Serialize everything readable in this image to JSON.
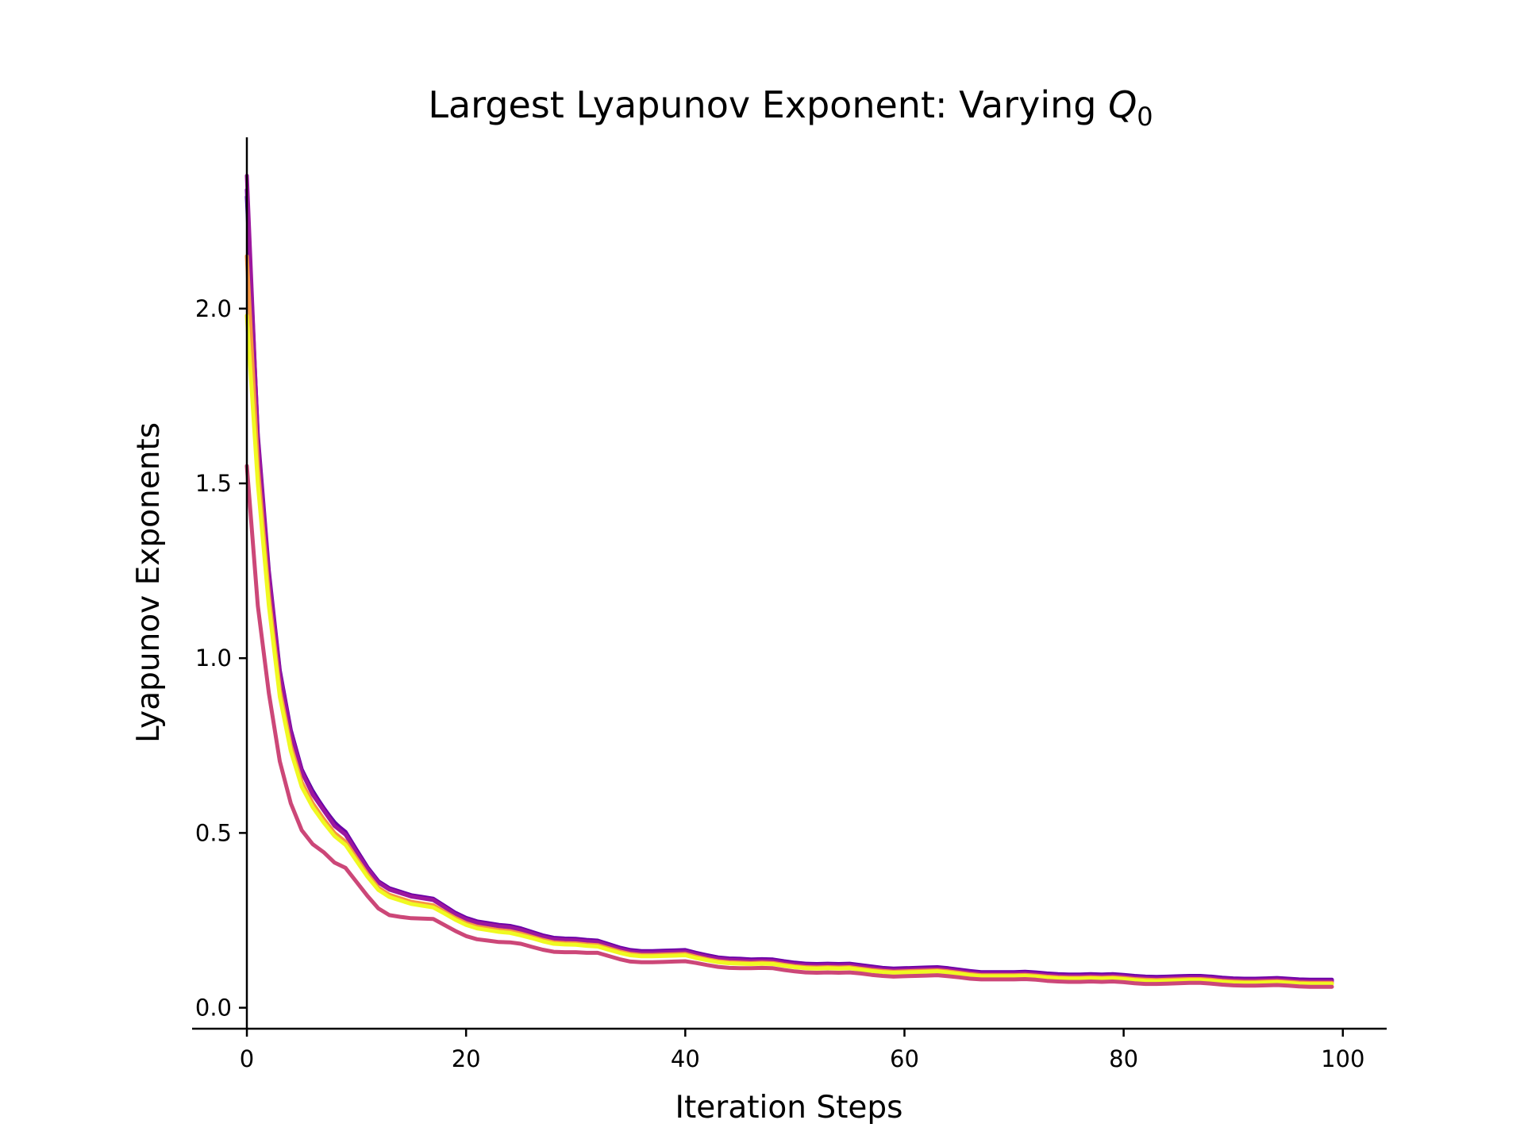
{
  "chart_data": {
    "type": "line",
    "title": "Largest Lyapunov Exponent: Varying ",
    "title_math_base": "Q",
    "title_math_sub": "0",
    "xlabel": "Iteration Steps",
    "ylabel": "Lyapunov Exponents",
    "xlim": [
      -5,
      104
    ],
    "ylim": [
      -0.06,
      2.49
    ],
    "xticks": [
      0,
      20,
      40,
      60,
      80,
      100
    ],
    "xtick_labels": [
      "0",
      "20",
      "40",
      "60",
      "80",
      "100"
    ],
    "yticks": [
      0.0,
      0.5,
      1.0,
      1.5,
      2.0
    ],
    "ytick_labels": [
      "0.0",
      "0.5",
      "1.0",
      "1.5",
      "2.0"
    ],
    "grid": false,
    "legend": false,
    "x": [
      0,
      1,
      2,
      3,
      4,
      5,
      6,
      7,
      8,
      9,
      10,
      11,
      12,
      13,
      14,
      15,
      16,
      17,
      18,
      19,
      20,
      21,
      22,
      23,
      24,
      25,
      26,
      27,
      28,
      29,
      30,
      31,
      32,
      33,
      34,
      35,
      36,
      37,
      38,
      39,
      40,
      41,
      42,
      43,
      44,
      45,
      46,
      47,
      48,
      49,
      50,
      51,
      52,
      53,
      54,
      55,
      56,
      57,
      58,
      59,
      60,
      61,
      62,
      63,
      64,
      65,
      66,
      67,
      68,
      69,
      70,
      71,
      72,
      73,
      74,
      75,
      76,
      77,
      78,
      79,
      80,
      81,
      82,
      83,
      84,
      85,
      86,
      87,
      88,
      89,
      90,
      91,
      92,
      93,
      94,
      95,
      96,
      97,
      98,
      99
    ],
    "series": [
      {
        "color": "#0d0887",
        "values": [
          2.32,
          1.62,
          1.24,
          0.96,
          0.79,
          0.68,
          0.62,
          0.57,
          0.53,
          0.5,
          0.45,
          0.4,
          0.36,
          0.34,
          0.33,
          0.32,
          0.315,
          0.31,
          0.29,
          0.27,
          0.255,
          0.245,
          0.24,
          0.235,
          0.232,
          0.225,
          0.215,
          0.205,
          0.198,
          0.196,
          0.195,
          0.192,
          0.19,
          0.18,
          0.17,
          0.163,
          0.16,
          0.16,
          0.161,
          0.162,
          0.163,
          0.155,
          0.148,
          0.142,
          0.139,
          0.138,
          0.136,
          0.137,
          0.136,
          0.131,
          0.127,
          0.124,
          0.123,
          0.124,
          0.123,
          0.124,
          0.12,
          0.116,
          0.112,
          0.11,
          0.111,
          0.112,
          0.113,
          0.114,
          0.111,
          0.107,
          0.103,
          0.1,
          0.1,
          0.1,
          0.1,
          0.101,
          0.099,
          0.096,
          0.094,
          0.093,
          0.093,
          0.094,
          0.093,
          0.094,
          0.092,
          0.089,
          0.087,
          0.086,
          0.087,
          0.088,
          0.089,
          0.089,
          0.087,
          0.084,
          0.082,
          0.081,
          0.081,
          0.082,
          0.083,
          0.081,
          0.079,
          0.078,
          0.078,
          0.078
        ]
      },
      {
        "color": "#6a00a8",
        "values": [
          2.34,
          1.64,
          1.25,
          0.965,
          0.795,
          0.682,
          0.618,
          0.572,
          0.528,
          0.503,
          0.452,
          0.402,
          0.362,
          0.342,
          0.332,
          0.322,
          0.317,
          0.312,
          0.292,
          0.272,
          0.257,
          0.247,
          0.242,
          0.237,
          0.234,
          0.227,
          0.217,
          0.207,
          0.2,
          0.198,
          0.197,
          0.194,
          0.192,
          0.182,
          0.172,
          0.165,
          0.162,
          0.162,
          0.163,
          0.164,
          0.165,
          0.157,
          0.15,
          0.144,
          0.141,
          0.14,
          0.138,
          0.139,
          0.138,
          0.133,
          0.129,
          0.126,
          0.125,
          0.126,
          0.125,
          0.126,
          0.122,
          0.118,
          0.114,
          0.112,
          0.113,
          0.114,
          0.115,
          0.116,
          0.113,
          0.109,
          0.105,
          0.102,
          0.102,
          0.102,
          0.102,
          0.103,
          0.101,
          0.098,
          0.096,
          0.095,
          0.095,
          0.096,
          0.095,
          0.096,
          0.094,
          0.091,
          0.089,
          0.088,
          0.089,
          0.09,
          0.091,
          0.091,
          0.089,
          0.086,
          0.084,
          0.083,
          0.083,
          0.084,
          0.085,
          0.083,
          0.081,
          0.08,
          0.08,
          0.08
        ]
      },
      {
        "color": "#9c179e",
        "values": [
          2.38,
          1.63,
          1.24,
          0.955,
          0.785,
          0.675,
          0.61,
          0.565,
          0.52,
          0.495,
          0.445,
          0.398,
          0.358,
          0.338,
          0.328,
          0.318,
          0.313,
          0.308,
          0.288,
          0.268,
          0.253,
          0.243,
          0.238,
          0.233,
          0.23,
          0.223,
          0.213,
          0.203,
          0.196,
          0.194,
          0.193,
          0.19,
          0.188,
          0.178,
          0.168,
          0.161,
          0.158,
          0.158,
          0.159,
          0.16,
          0.161,
          0.153,
          0.146,
          0.14,
          0.137,
          0.136,
          0.134,
          0.135,
          0.134,
          0.129,
          0.125,
          0.122,
          0.121,
          0.122,
          0.121,
          0.122,
          0.118,
          0.114,
          0.11,
          0.108,
          0.109,
          0.11,
          0.111,
          0.112,
          0.109,
          0.105,
          0.101,
          0.098,
          0.098,
          0.098,
          0.098,
          0.099,
          0.097,
          0.094,
          0.092,
          0.091,
          0.091,
          0.092,
          0.091,
          0.092,
          0.09,
          0.087,
          0.085,
          0.084,
          0.085,
          0.086,
          0.087,
          0.087,
          0.085,
          0.082,
          0.08,
          0.079,
          0.079,
          0.08,
          0.081,
          0.079,
          0.077,
          0.076,
          0.076,
          0.076
        ]
      },
      {
        "color": "#f89540",
        "values": [
          2.15,
          1.55,
          1.18,
          0.91,
          0.75,
          0.645,
          0.585,
          0.54,
          0.5,
          0.475,
          0.428,
          0.382,
          0.343,
          0.323,
          0.313,
          0.303,
          0.298,
          0.293,
          0.275,
          0.257,
          0.242,
          0.232,
          0.227,
          0.222,
          0.219,
          0.212,
          0.203,
          0.194,
          0.187,
          0.185,
          0.184,
          0.181,
          0.179,
          0.17,
          0.161,
          0.154,
          0.151,
          0.151,
          0.152,
          0.153,
          0.154,
          0.146,
          0.139,
          0.133,
          0.13,
          0.129,
          0.128,
          0.129,
          0.128,
          0.123,
          0.119,
          0.116,
          0.115,
          0.116,
          0.115,
          0.116,
          0.112,
          0.108,
          0.105,
          0.103,
          0.104,
          0.105,
          0.106,
          0.107,
          0.104,
          0.1,
          0.096,
          0.093,
          0.093,
          0.093,
          0.093,
          0.094,
          0.092,
          0.089,
          0.087,
          0.086,
          0.086,
          0.087,
          0.086,
          0.087,
          0.085,
          0.082,
          0.08,
          0.079,
          0.08,
          0.081,
          0.082,
          0.082,
          0.08,
          0.077,
          0.075,
          0.074,
          0.074,
          0.075,
          0.076,
          0.074,
          0.072,
          0.071,
          0.071,
          0.071
        ]
      },
      {
        "color": "#f0f921",
        "values": [
          1.98,
          1.5,
          1.15,
          0.89,
          0.735,
          0.632,
          0.574,
          0.53,
          0.491,
          0.466,
          0.42,
          0.375,
          0.337,
          0.317,
          0.307,
          0.297,
          0.292,
          0.287,
          0.27,
          0.252,
          0.237,
          0.227,
          0.222,
          0.217,
          0.214,
          0.207,
          0.199,
          0.19,
          0.183,
          0.181,
          0.18,
          0.177,
          0.175,
          0.166,
          0.157,
          0.15,
          0.147,
          0.147,
          0.148,
          0.149,
          0.15,
          0.142,
          0.136,
          0.13,
          0.127,
          0.126,
          0.125,
          0.126,
          0.125,
          0.12,
          0.116,
          0.113,
          0.112,
          0.113,
          0.112,
          0.113,
          0.109,
          0.105,
          0.102,
          0.1,
          0.101,
          0.102,
          0.103,
          0.104,
          0.101,
          0.097,
          0.093,
          0.09,
          0.09,
          0.09,
          0.09,
          0.091,
          0.089,
          0.086,
          0.084,
          0.083,
          0.083,
          0.084,
          0.083,
          0.084,
          0.082,
          0.079,
          0.077,
          0.076,
          0.077,
          0.078,
          0.079,
          0.079,
          0.077,
          0.074,
          0.072,
          0.071,
          0.071,
          0.072,
          0.073,
          0.071,
          0.069,
          0.068,
          0.068,
          0.068
        ]
      },
      {
        "color": "#cc4778",
        "values": [
          1.55,
          1.15,
          0.9,
          0.705,
          0.585,
          0.508,
          0.468,
          0.445,
          0.415,
          0.4,
          0.36,
          0.32,
          0.284,
          0.265,
          0.26,
          0.256,
          0.255,
          0.254,
          0.237,
          0.22,
          0.205,
          0.196,
          0.192,
          0.188,
          0.187,
          0.183,
          0.174,
          0.166,
          0.16,
          0.159,
          0.159,
          0.157,
          0.157,
          0.148,
          0.139,
          0.132,
          0.13,
          0.13,
          0.131,
          0.132,
          0.133,
          0.128,
          0.122,
          0.117,
          0.114,
          0.113,
          0.113,
          0.114,
          0.113,
          0.108,
          0.104,
          0.101,
          0.1,
          0.101,
          0.1,
          0.101,
          0.098,
          0.094,
          0.091,
          0.089,
          0.09,
          0.091,
          0.092,
          0.093,
          0.09,
          0.087,
          0.083,
          0.081,
          0.081,
          0.081,
          0.081,
          0.082,
          0.08,
          0.077,
          0.075,
          0.074,
          0.074,
          0.075,
          0.074,
          0.075,
          0.073,
          0.07,
          0.068,
          0.068,
          0.069,
          0.07,
          0.071,
          0.071,
          0.069,
          0.066,
          0.064,
          0.063,
          0.063,
          0.064,
          0.065,
          0.063,
          0.061,
          0.06,
          0.06,
          0.06
        ]
      }
    ]
  }
}
